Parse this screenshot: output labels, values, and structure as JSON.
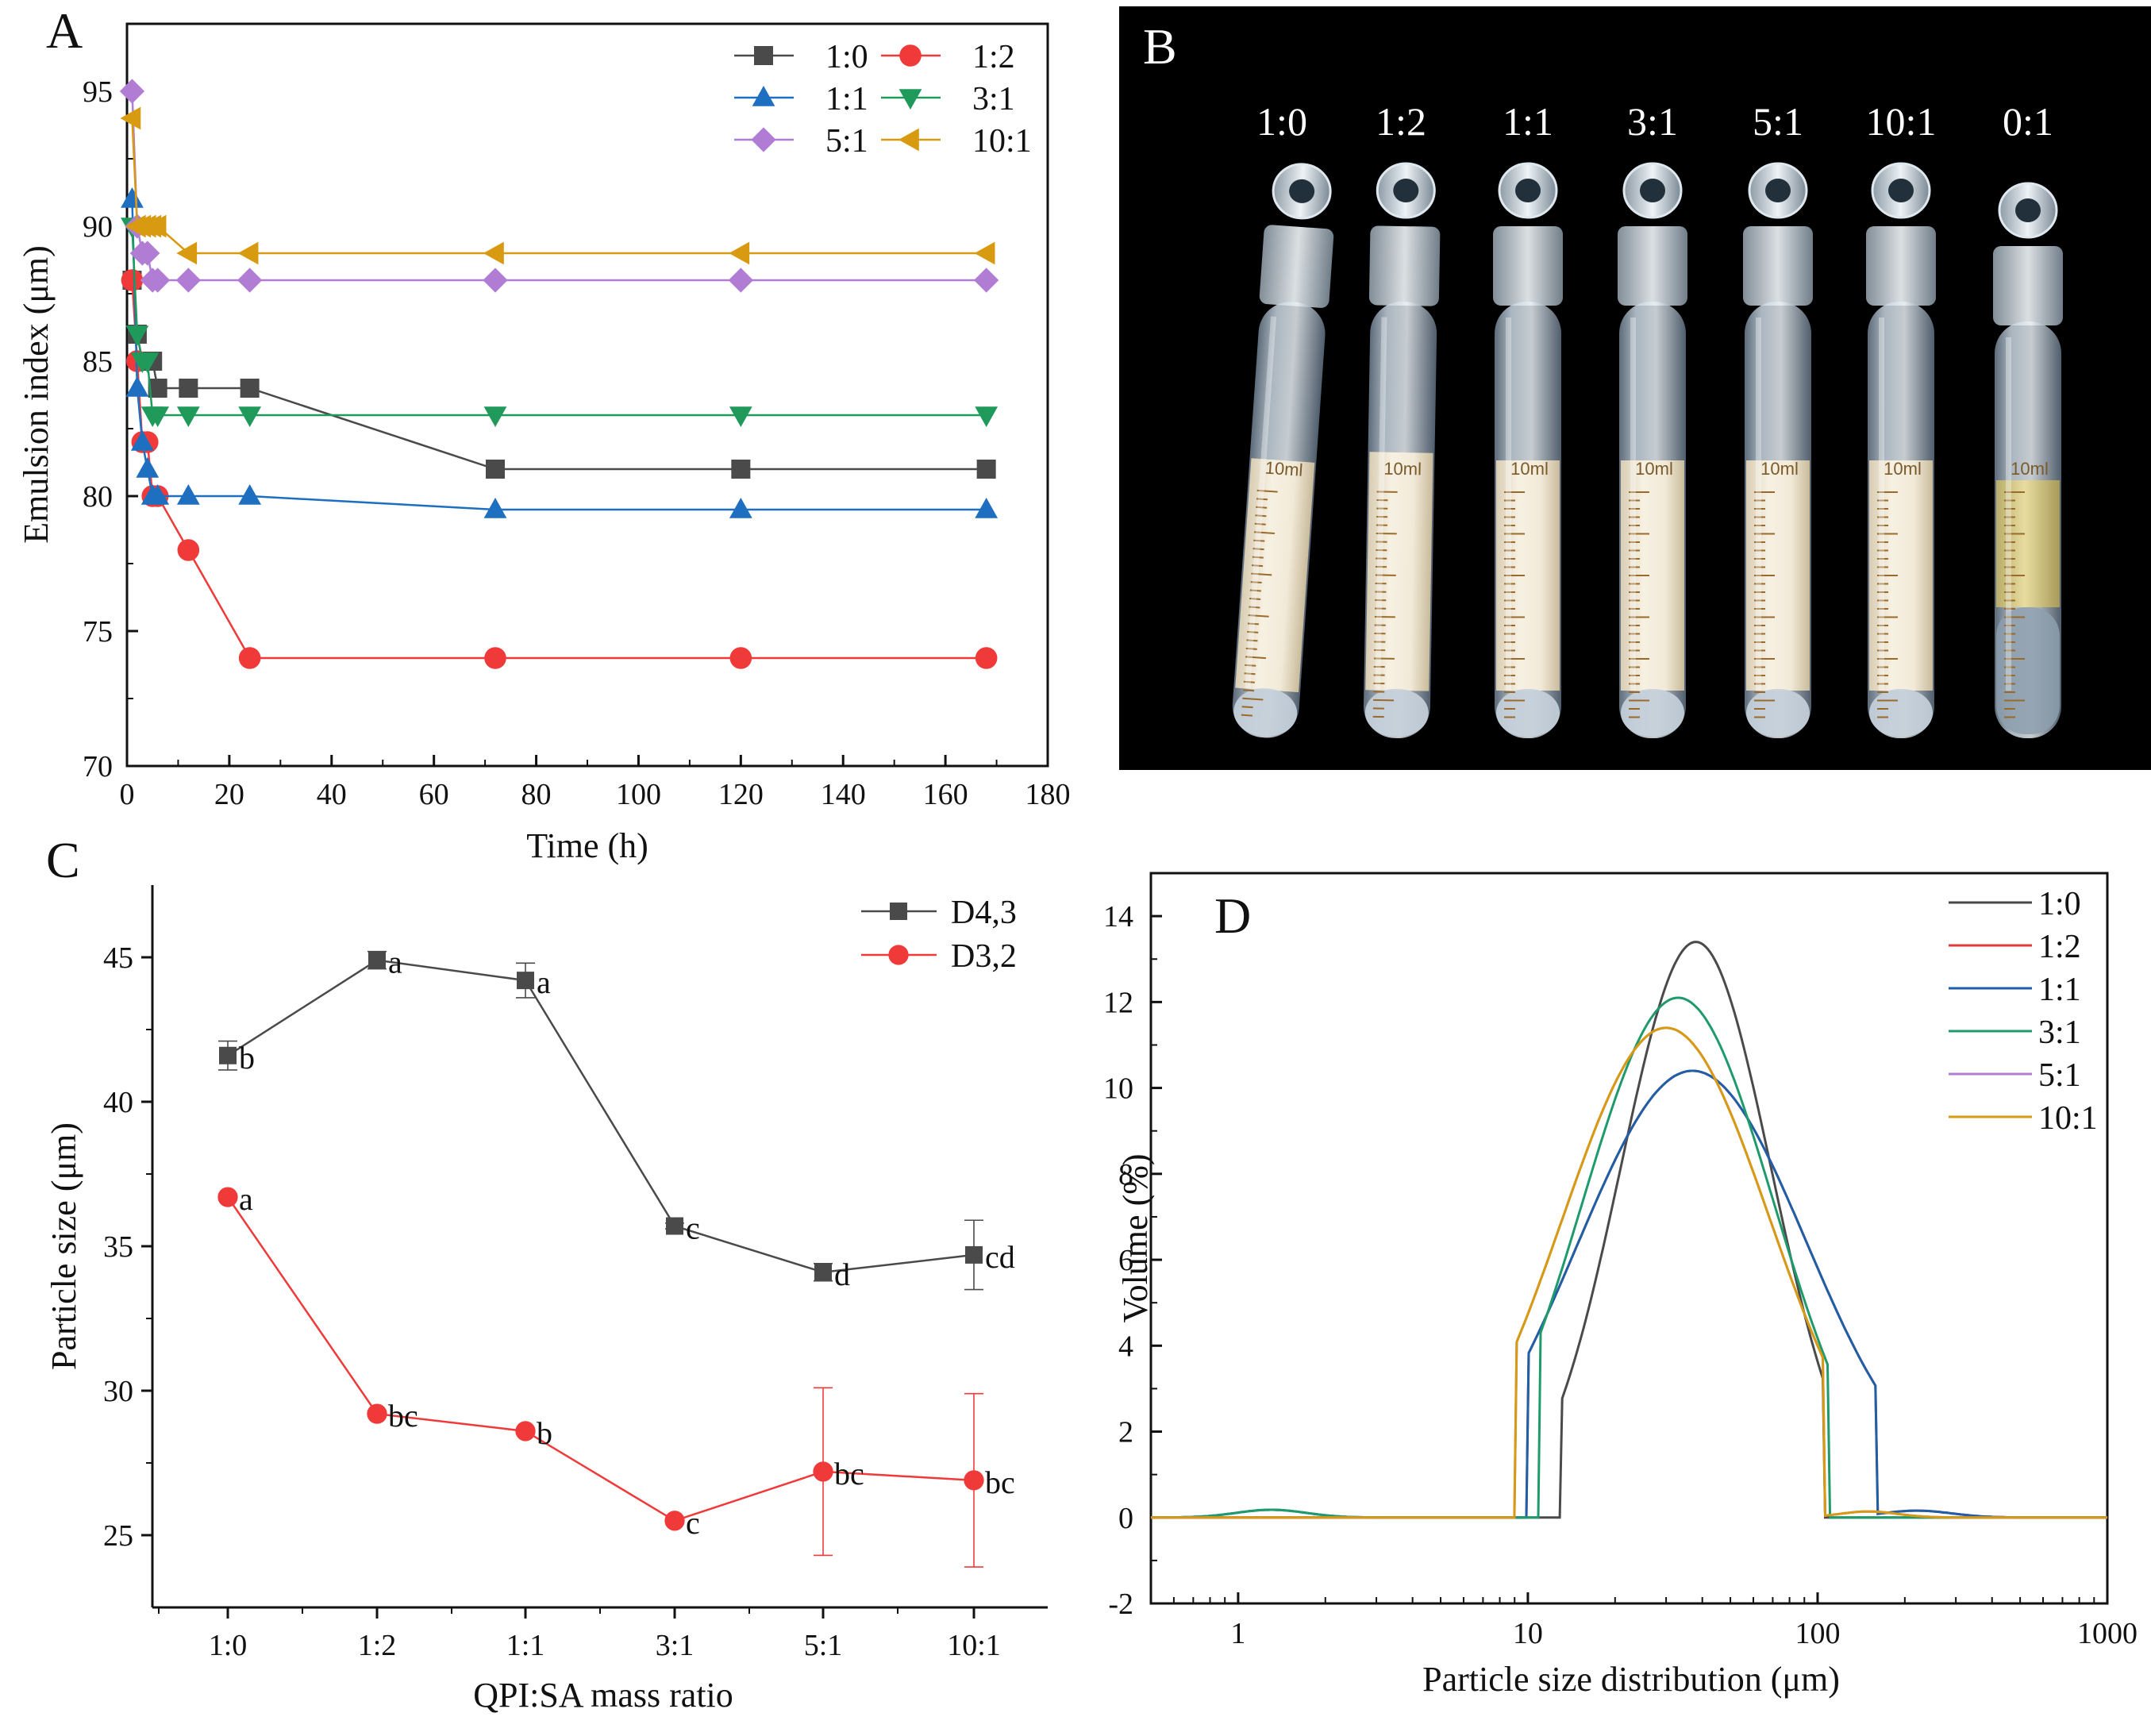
{
  "chart_data": [
    {
      "id": "A",
      "type": "line",
      "panel_label": "A",
      "title": "",
      "xlabel": "Time (h)",
      "ylabel": "Emulsion index (μm)",
      "xlim": [
        0,
        180
      ],
      "ylim": [
        70,
        97.5
      ],
      "xticks": [
        0,
        20,
        40,
        60,
        80,
        100,
        120,
        140,
        160,
        180
      ],
      "yticks": [
        70,
        75,
        80,
        85,
        90,
        95
      ],
      "x": [
        1,
        2,
        3,
        4,
        5,
        6,
        12,
        24,
        72,
        120,
        168
      ],
      "series": [
        {
          "name": "1:0",
          "color": "#4a4a4a",
          "marker": "square",
          "values": [
            88,
            86,
            85,
            85,
            85,
            84,
            84,
            84,
            81,
            81,
            81
          ]
        },
        {
          "name": "1:2",
          "color": "#f03a3a",
          "marker": "circle",
          "values": [
            88,
            85,
            82,
            82,
            80,
            80,
            78,
            74,
            74,
            74,
            74
          ]
        },
        {
          "name": "1:1",
          "color": "#1f6fc0",
          "marker": "triangle-up",
          "values": [
            91,
            84,
            82,
            81,
            80,
            80,
            80,
            80,
            79.5,
            79.5,
            79.5
          ]
        },
        {
          "name": "3:1",
          "color": "#1f9a5a",
          "marker": "triangle-down",
          "values": [
            90,
            86,
            85,
            85,
            83,
            83,
            83,
            83,
            83,
            83,
            83
          ]
        },
        {
          "name": "5:1",
          "color": "#b07cd4",
          "marker": "diamond",
          "values": [
            95,
            90,
            89,
            89,
            88,
            88,
            88,
            88,
            88,
            88,
            88
          ]
        },
        {
          "name": "10:1",
          "color": "#d89a10",
          "marker": "triangle-left",
          "values": [
            94,
            90,
            90,
            90,
            90,
            90,
            89,
            89,
            89,
            89,
            89
          ]
        }
      ]
    },
    {
      "id": "C",
      "type": "line",
      "panel_label": "C",
      "title": "",
      "xlabel": "QPI:SA mass ratio",
      "ylabel": "Particle size (μm)",
      "categories": [
        "1:0",
        "1:2",
        "1:1",
        "3:1",
        "5:1",
        "10:1"
      ],
      "ylim": [
        22.5,
        47.5
      ],
      "yticks": [
        25,
        30,
        35,
        40,
        45
      ],
      "series": [
        {
          "name": "D4,3",
          "color": "#4a4a4a",
          "marker": "square",
          "values": [
            41.6,
            44.9,
            44.2,
            35.7,
            34.1,
            34.7
          ],
          "errors": [
            0.5,
            0.3,
            0.6,
            0.1,
            0.3,
            1.2
          ],
          "letters": [
            "b",
            "a",
            "a",
            "c",
            "d",
            "cd"
          ]
        },
        {
          "name": "D3,2",
          "color": "#f03a3a",
          "marker": "circle",
          "values": [
            36.7,
            29.2,
            28.6,
            25.5,
            27.2,
            26.9
          ],
          "errors": [
            0.1,
            0.1,
            0.1,
            0.1,
            2.9,
            3.0
          ],
          "letters": [
            "a",
            "bc",
            "b",
            "c",
            "bc",
            "bc"
          ]
        }
      ]
    },
    {
      "id": "D",
      "type": "line",
      "panel_label": "D",
      "title": "",
      "xlabel": "Particle size distribution (μm)",
      "ylabel": "Volume (%)",
      "xscale": "log",
      "xlim": [
        0.5,
        1000
      ],
      "ylim": [
        -2,
        15
      ],
      "xticks": [
        1,
        10,
        100,
        1000
      ],
      "yticks": [
        -2,
        0,
        2,
        4,
        6,
        8,
        10,
        12,
        14
      ],
      "series": [
        {
          "name": "1:0",
          "color": "#4a4a4a",
          "mu": 38,
          "sigma": 0.26,
          "peak": 13.4,
          "start": 13,
          "end": 105
        },
        {
          "name": "1:2",
          "color": "#e03a3a",
          "mu": 37,
          "sigma": 0.4,
          "peak": 10.4,
          "start": 10,
          "end": 160
        },
        {
          "name": "1:1",
          "color": "#1f5fa8",
          "mu": 37,
          "sigma": 0.4,
          "peak": 10.4,
          "start": 10,
          "end": 160
        },
        {
          "name": "3:1",
          "color": "#1f9a6a",
          "mu": 33,
          "sigma": 0.33,
          "peak": 12.1,
          "start": 11,
          "end": 110
        },
        {
          "name": "5:1",
          "color": "#b07cd4",
          "mu": 30,
          "sigma": 0.36,
          "peak": 11.4,
          "start": 9,
          "end": 105
        },
        {
          "name": "10:1",
          "color": "#d89a10",
          "mu": 30,
          "sigma": 0.36,
          "peak": 11.4,
          "start": 9,
          "end": 105
        }
      ]
    }
  ],
  "photo": {
    "panel_label": "B",
    "tube_labels": [
      "1:0",
      "1:2",
      "1:1",
      "3:1",
      "5:1",
      "10:1",
      "0:1"
    ],
    "tube_volume_label": "10ml"
  }
}
